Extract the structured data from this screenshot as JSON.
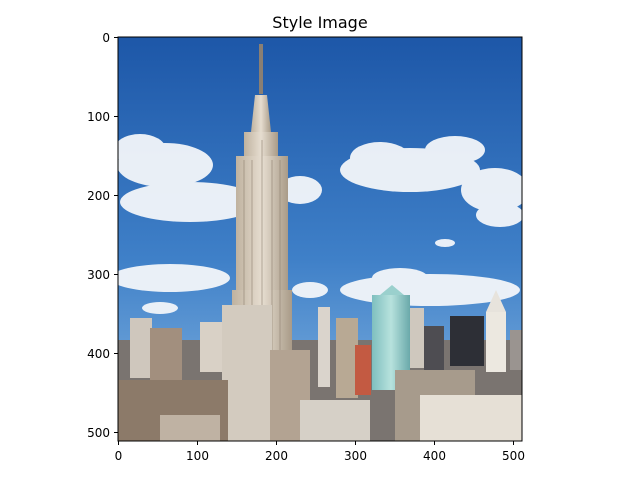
{
  "figure": {
    "title": "Style Image",
    "image_description_name": "empire-state-building-photo",
    "x_ticks": [
      "0",
      "100",
      "200",
      "300",
      "400",
      "500"
    ],
    "y_ticks": [
      "0",
      "100",
      "200",
      "300",
      "400",
      "500"
    ],
    "image_extent": [
      0,
      512
    ],
    "colors": {
      "sky_top": "#1f5fb0",
      "sky_bottom": "#6aa3dc",
      "cloud": "#f3f6fa",
      "building": "#d8cfc2",
      "glass_tower": "#9fd1cf",
      "city_shadow": "#5a5148"
    }
  }
}
